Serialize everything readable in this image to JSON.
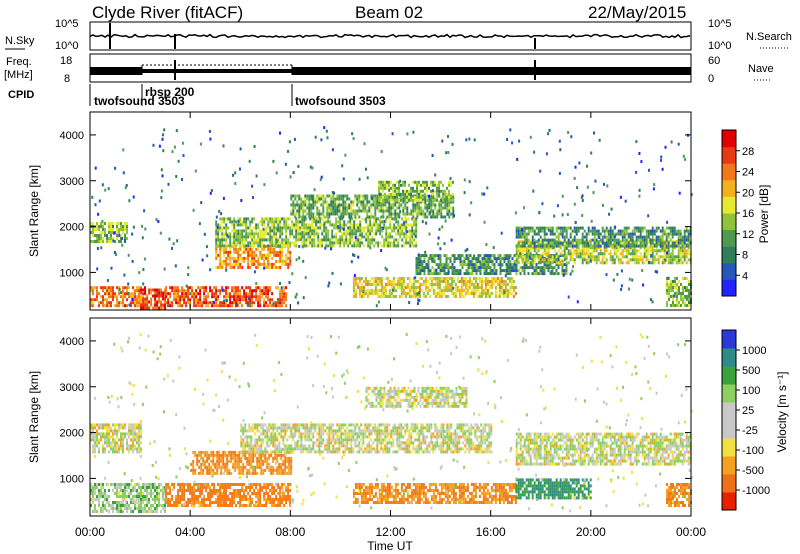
{
  "header": {
    "title": "Clyde River (fitACF)",
    "beam": "Beam 02",
    "date": "22/May/2015"
  },
  "noise_panel": {
    "left_label": "N.Sky",
    "right_label": "N.Search",
    "left_ticks": [
      "10^5",
      "10^0"
    ],
    "right_ticks": [
      "10^5",
      "10^0"
    ]
  },
  "freq_panel": {
    "left_label_line1": "Freq.",
    "left_label_line2": "[MHz]",
    "right_label": "Nave",
    "left_ticks": [
      "18",
      "8"
    ],
    "right_ticks": [
      "60",
      "0"
    ]
  },
  "cpid": {
    "label": "CPID",
    "modes": [
      {
        "name": "twofsound 3503",
        "start_hour": 0.0
      },
      {
        "name": "rbsp 200",
        "start_hour": 3.3
      },
      {
        "name": "twofsound 3503",
        "start_hour": 8.0
      }
    ]
  },
  "time_axis": {
    "label": "Time UT",
    "ticks": [
      "00:00",
      "04:00",
      "08:00",
      "12:00",
      "16:00",
      "20:00",
      "00:00"
    ]
  },
  "power_colorbar": {
    "label": "Power [dB]",
    "ticks": [
      "28",
      "24",
      "20",
      "16",
      "12",
      "8",
      "4"
    ],
    "colors": [
      "#2323ff",
      "#2358b8",
      "#2e7e5a",
      "#4e9a50",
      "#8fc43a",
      "#e8e830",
      "#f5b020",
      "#f07818",
      "#e83a10",
      "#e00000"
    ]
  },
  "velocity_colorbar": {
    "label": "Velocity [m s⁻¹]",
    "ticks": [
      "1000",
      "500",
      "100",
      "25",
      "-25",
      "-100",
      "-500",
      "-1000"
    ],
    "colors": [
      "#2a3ad8",
      "#2f8a8a",
      "#3aa23a",
      "#8bd060",
      "#c8c8c8",
      "#c8c8c8",
      "#f0e040",
      "#f5a020",
      "#f07018",
      "#e82000"
    ]
  },
  "chart_data": [
    {
      "type": "heatmap",
      "title": "Power [dB]",
      "xlabel": "Time UT",
      "ylabel": "Slant Range [km]",
      "x_unit": "hours UT",
      "xlim": [
        0,
        24
      ],
      "ylim": [
        180,
        4500
      ],
      "yticks": [
        1000,
        2000,
        3000,
        4000
      ],
      "grid": false,
      "regions": [
        {
          "t0": 0.0,
          "t1": 1.5,
          "r0": 1700,
          "r1": 2100,
          "value": 14
        },
        {
          "t0": 0.0,
          "t1": 2.2,
          "r0": 300,
          "r1": 700,
          "value": 24
        },
        {
          "t0": 2.0,
          "t1": 3.0,
          "r0": 250,
          "r1": 650,
          "value": 27
        },
        {
          "t0": 3.0,
          "t1": 7.8,
          "r0": 300,
          "r1": 700,
          "value": 26
        },
        {
          "t0": 5.0,
          "t1": 8.0,
          "r0": 1100,
          "r1": 1600,
          "value": 22
        },
        {
          "t0": 5.0,
          "t1": 13.0,
          "r0": 1600,
          "r1": 2200,
          "value": 14
        },
        {
          "t0": 8.0,
          "t1": 14.5,
          "r0": 2200,
          "r1": 2700,
          "value": 12
        },
        {
          "t0": 11.5,
          "t1": 14.5,
          "r0": 2600,
          "r1": 3000,
          "value": 14
        },
        {
          "t0": 10.5,
          "t1": 17.0,
          "r0": 500,
          "r1": 900,
          "value": 18
        },
        {
          "t0": 13.0,
          "t1": 19.0,
          "r0": 1000,
          "r1": 1400,
          "value": 10
        },
        {
          "t0": 17.0,
          "t1": 24.0,
          "r0": 1200,
          "r1": 1700,
          "value": 16
        },
        {
          "t0": 17.0,
          "t1": 24.0,
          "r0": 1600,
          "r1": 2000,
          "value": 10
        },
        {
          "t0": 23.0,
          "t1": 24.0,
          "r0": 300,
          "r1": 900,
          "value": 14
        }
      ]
    },
    {
      "type": "heatmap",
      "title": "Velocity [m s⁻¹]",
      "xlabel": "Time UT",
      "ylabel": "Slant Range [km]",
      "x_unit": "hours UT",
      "xlim": [
        0,
        24
      ],
      "ylim": [
        180,
        4500
      ],
      "yticks": [
        1000,
        2000,
        3000,
        4000
      ],
      "grid": false,
      "regions": [
        {
          "t0": 0.0,
          "t1": 2.0,
          "r0": 1600,
          "r1": 2200,
          "value": 0
        },
        {
          "t0": 0.0,
          "t1": 3.0,
          "r0": 300,
          "r1": 900,
          "value": 50
        },
        {
          "t0": 3.0,
          "t1": 8.0,
          "r0": 400,
          "r1": 900,
          "value": -200
        },
        {
          "t0": 4.0,
          "t1": 8.0,
          "r0": 1100,
          "r1": 1600,
          "value": -150
        },
        {
          "t0": 6.0,
          "t1": 16.0,
          "r0": 1600,
          "r1": 2200,
          "value": 0
        },
        {
          "t0": 11.0,
          "t1": 15.0,
          "r0": 2600,
          "r1": 3000,
          "value": 0
        },
        {
          "t0": 10.5,
          "t1": 17.0,
          "r0": 500,
          "r1": 900,
          "value": -150
        },
        {
          "t0": 17.0,
          "t1": 20.0,
          "r0": 600,
          "r1": 1000,
          "value": 300
        },
        {
          "t0": 17.0,
          "t1": 24.0,
          "r0": 1300,
          "r1": 2000,
          "value": 0
        },
        {
          "t0": 23.0,
          "t1": 24.0,
          "r0": 400,
          "r1": 900,
          "value": -150
        }
      ]
    }
  ]
}
